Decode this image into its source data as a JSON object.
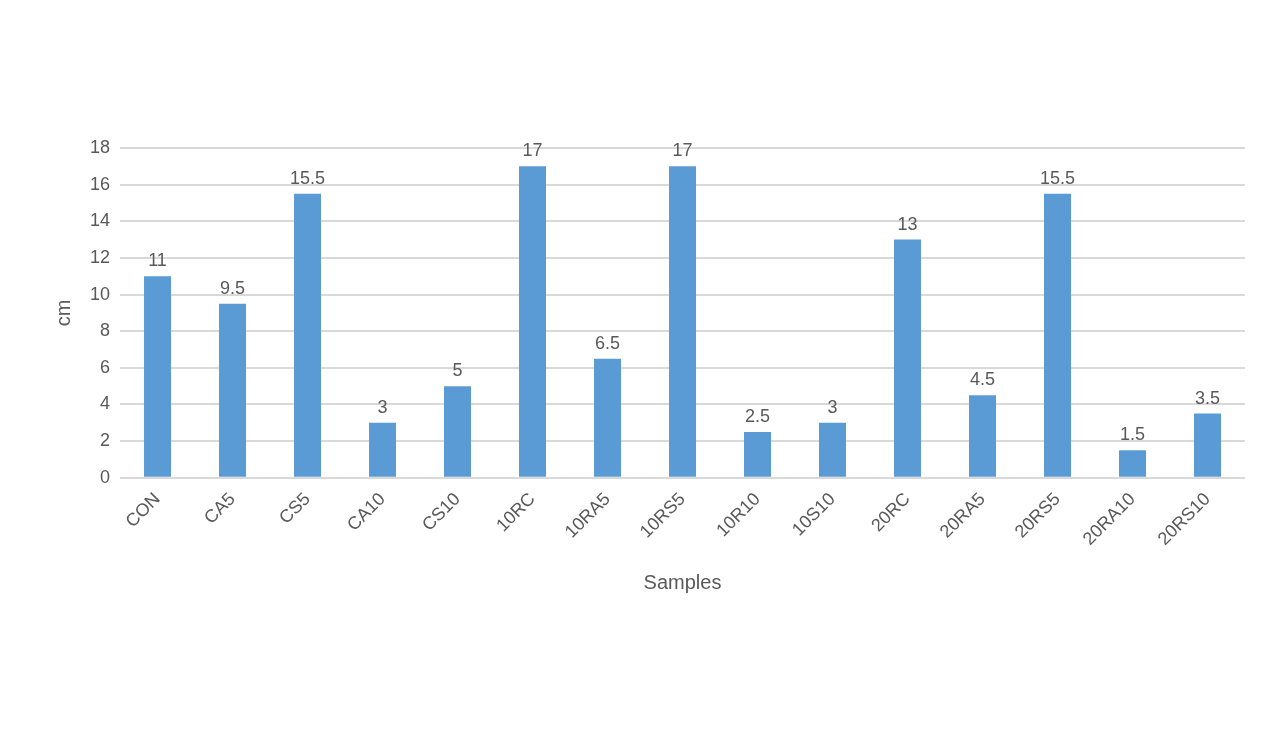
{
  "chart_data": {
    "type": "bar",
    "xlabel": "Samples",
    "ylabel": "cm",
    "categories": [
      "CON",
      "CA5",
      "CS5",
      "CA10",
      "CS10",
      "10RC",
      "10RA5",
      "10RS5",
      "10R10",
      "10S10",
      "20RC",
      "20RA5",
      "20RS5",
      "20RA10",
      "20RS10"
    ],
    "values": [
      11,
      9.5,
      15.5,
      3,
      5,
      17,
      6.5,
      17,
      2.5,
      3,
      13,
      4.5,
      15.5,
      1.5,
      3.5
    ],
    "color": "#5b9bd5",
    "ylim": [
      0,
      18
    ],
    "yticks": [
      0,
      2,
      4,
      6,
      8,
      10,
      12,
      14,
      16,
      18
    ],
    "grid": "y",
    "data_labels": true,
    "legend": false
  }
}
